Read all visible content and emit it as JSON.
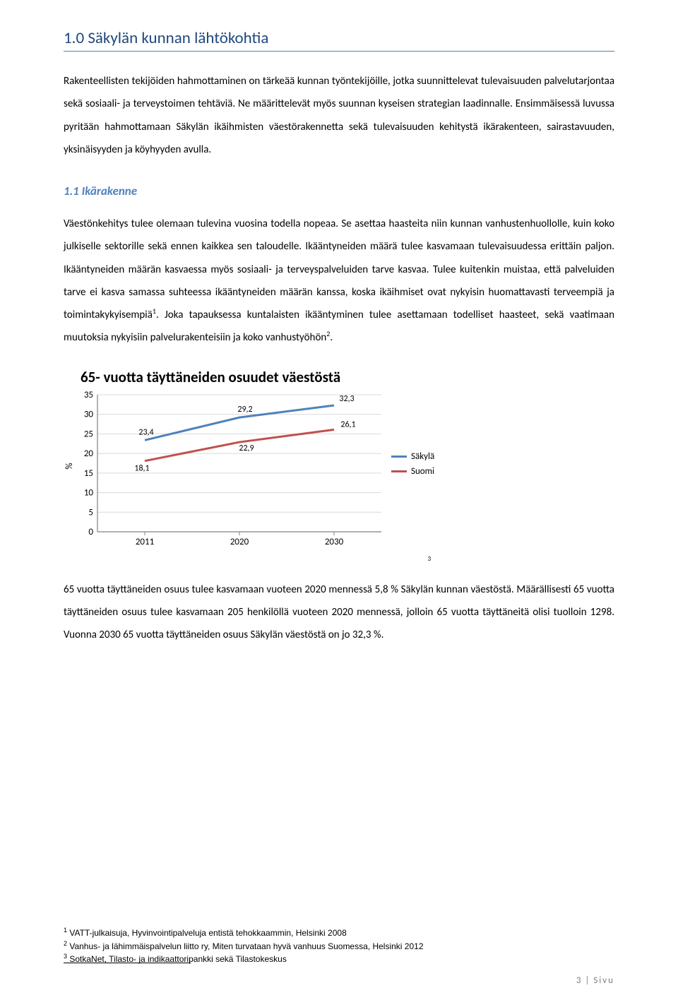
{
  "section_title": "1.0 Säkylän kunnan lähtökohtia",
  "para1": "Rakenteellisten tekijöiden hahmottaminen on tärkeää kunnan työntekijöille, jotka suunnittelevat tulevaisuuden palvelutarjontaa sekä sosiaali- ja terveystoimen tehtäviä. Ne määrittelevät myös suunnan kyseisen strategian laadinnalle. Ensimmäisessä luvussa pyritään hahmottamaan Säkylän ikäihmisten väestörakennetta sekä tulevaisuuden kehitystä ikärakenteen, sairastavuuden, yksinäisyyden ja köyhyyden avulla.",
  "subsection_title": "1.1 Ikärakenne",
  "para2_a": "Väestönkehitys tulee olemaan tulevina vuosina todella nopeaa. Se asettaa haasteita niin kunnan vanhustenhuollolle, kuin koko julkiselle sektorille sekä ennen kaikkea sen taloudelle. Ikääntyneiden määrä tulee kasvamaan tulevaisuudessa erittäin paljon. Ikääntyneiden määrän kasvaessa myös sosiaali- ja terveyspalveluiden tarve kasvaa. Tulee kuitenkin muistaa, että palveluiden tarve ei kasva samassa suhteessa ikääntyneiden määrän kanssa, koska ikäihmiset ovat nykyisin huomattavasti terveempiä ja toimintakykyisempiä",
  "para2_b": ". Joka tapauksessa kuntalaisten ikääntyminen tulee asettamaan todelliset haasteet, sekä vaatimaan muutoksia nykyisiin palvelurakenteisiin ja koko vanhustyöhön",
  "para2_c": ".",
  "sup1": "1",
  "sup2": "2",
  "chart": {
    "title": "65- vuotta täyttäneiden osuudet väestöstä",
    "x_categories": [
      "2011",
      "2020",
      "2030"
    ],
    "y_ticks": [
      0,
      5,
      10,
      15,
      20,
      25,
      30,
      35
    ],
    "y_label": "%",
    "series1_name": "Säkylä",
    "series1_color": "#4f81bd",
    "series1_values": [
      23.4,
      29.2,
      32.3
    ],
    "series2_name": "Suomi",
    "series2_color": "#c0504d",
    "series2_values": [
      18.1,
      22.9,
      26.1
    ],
    "label_s1_0": "23,4",
    "label_s1_1": "29,2",
    "label_s1_2": "32,3",
    "label_s2_0": "18,1",
    "label_s2_1": "22,9",
    "label_s2_2": "26,1",
    "footnote_ref": "3",
    "background": "#ffffff",
    "grid_color": "#d9d9d9",
    "axis_color": "#808080",
    "line_width": 3
  },
  "para3": "65 vuotta täyttäneiden osuus tulee kasvamaan vuoteen 2020 mennessä 5,8 % Säkylän kunnan väestöstä. Määrällisesti 65 vuotta täyttäneiden osuus tulee kasvamaan 205 henkilöllä vuoteen 2020 mennessä, jolloin 65 vuotta täyttäneitä olisi tuolloin 1298. Vuonna 2030 65 vuotta täyttäneiden osuus Säkylän väestöstä on jo 32,3 %.",
  "footnotes": {
    "f1_num": "1",
    "f1": " VATT-julkaisuja, Hyvinvointipalveluja entistä tehokkaammin, Helsinki 2008",
    "f2_num": "2",
    "f2": " Vanhus- ja lähimmäispalvelun liitto ry, Miten turvataan hyvä vanhuus Suomessa, Helsinki 2012",
    "f3_num": "3",
    "f3": " SotkaNet, Tilasto- ja indikaattoripankki sekä Tilastokeskus"
  },
  "page": {
    "num": "3",
    "divider": "|",
    "word": "Sivu"
  }
}
